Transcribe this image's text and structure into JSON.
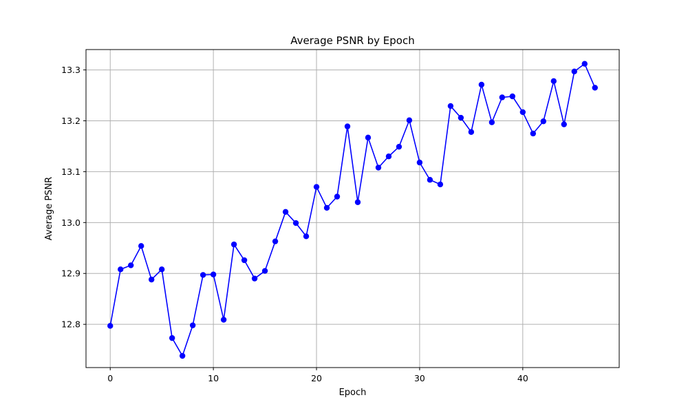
{
  "chart_data": {
    "type": "line",
    "title": "Average PSNR by Epoch",
    "xlabel": "Epoch",
    "ylabel": "Average PSNR",
    "xlim": [
      -2.35,
      49.35
    ],
    "ylim": [
      12.715,
      13.34
    ],
    "x_ticks": [
      0,
      10,
      20,
      30,
      40
    ],
    "y_ticks": [
      12.8,
      12.9,
      13.0,
      13.1,
      13.2,
      13.3
    ],
    "x_tick_labels": [
      "0",
      "10",
      "20",
      "30",
      "40"
    ],
    "y_tick_labels": [
      "12.8",
      "12.9",
      "13.0",
      "13.1",
      "13.2",
      "13.3"
    ],
    "grid": true,
    "color": "#0000ff",
    "marker": "circle",
    "series": [
      {
        "x": [
          0,
          1,
          2,
          3,
          4,
          5,
          6,
          7,
          8,
          9,
          10,
          11,
          12,
          13,
          14,
          15,
          16,
          17,
          18,
          19,
          20,
          21,
          22,
          23,
          24,
          25,
          26,
          27,
          28,
          29,
          30,
          31,
          32,
          33,
          34,
          35,
          36,
          37,
          38,
          39,
          40,
          41,
          42,
          43,
          44,
          45,
          46,
          47
        ],
        "values": [
          12.797,
          12.908,
          12.916,
          12.954,
          12.888,
          12.908,
          12.773,
          12.738,
          12.798,
          12.897,
          12.898,
          12.809,
          12.957,
          12.926,
          12.89,
          12.905,
          12.963,
          13.021,
          12.999,
          12.973,
          13.07,
          13.029,
          13.051,
          13.189,
          13.04,
          13.167,
          13.108,
          13.13,
          13.149,
          13.201,
          13.118,
          13.084,
          13.075,
          13.229,
          13.206,
          13.178,
          13.271,
          13.197,
          13.246,
          13.248,
          13.217,
          13.175,
          13.199,
          13.278,
          13.193,
          13.297,
          13.312,
          13.265
        ]
      }
    ]
  }
}
